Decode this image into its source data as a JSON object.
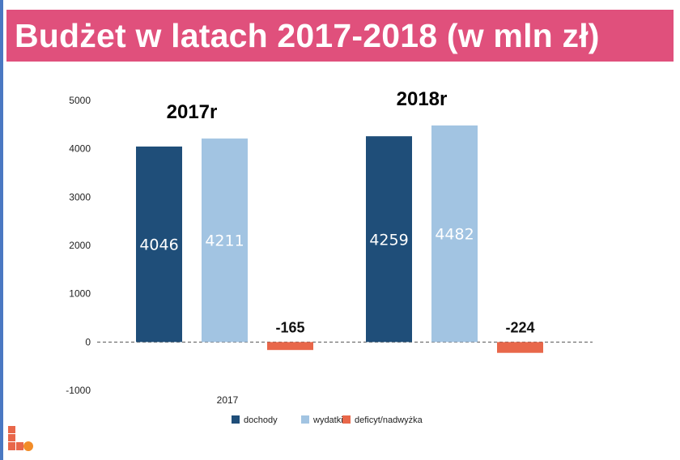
{
  "header": {
    "title": "Budżet w latach 2017-2018 (w mln zł)"
  },
  "chart_data": {
    "type": "bar",
    "groups": [
      "2017r",
      "2018r"
    ],
    "series": [
      {
        "name": "dochody",
        "values": [
          4046,
          4259
        ],
        "color": "#1f4e79"
      },
      {
        "name": "wydatki",
        "values": [
          4211,
          4482
        ],
        "color": "#a2c4e2"
      },
      {
        "name": "deficyt/nadwyżka",
        "values": [
          -165,
          -224
        ],
        "color": "#e8674a"
      }
    ],
    "data_labels": [
      [
        "4046",
        "4211",
        "-165"
      ],
      [
        "4259",
        "4482",
        "-224"
      ]
    ],
    "yticks": [
      "5000",
      "4000",
      "3000",
      "2000",
      "1000",
      "0",
      "-1000"
    ],
    "ylim": [
      -1000,
      5000
    ],
    "xlabel": "2017",
    "grid": false,
    "legend_position": "bottom"
  },
  "logo": {
    "colors": [
      "#e8674a",
      "#f28c28"
    ],
    "icon": "brand-logo-icon"
  }
}
